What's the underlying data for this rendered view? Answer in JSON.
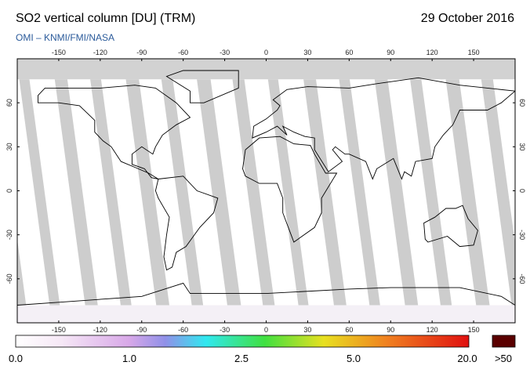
{
  "header": {
    "title": "SO2 vertical column [DU] (TRM)",
    "date": "29 October 2016",
    "source": "OMI  –  KNMI/FMI/NASA"
  },
  "map": {
    "lon_ticks": [
      -150,
      -120,
      -90,
      -60,
      -30,
      0,
      30,
      60,
      90,
      120,
      150
    ],
    "lat_ticks": [
      60,
      30,
      0,
      -30,
      -60
    ]
  },
  "colorbar": {
    "labels": [
      "0.0",
      "1.0",
      "2.5",
      "5.0",
      "20.0"
    ],
    "overflow_label": ">50"
  }
}
